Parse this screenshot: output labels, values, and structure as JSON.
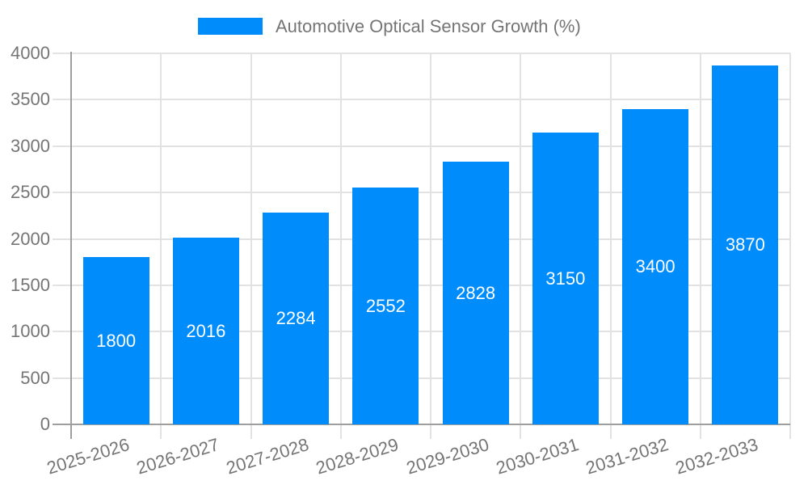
{
  "legend": {
    "label": "Automotive Optical Sensor Growth (%)"
  },
  "colors": {
    "bar": "#008DFB",
    "axis_text": "#757575",
    "bar_label_text": "#ffffff",
    "gridline": "#e2e2e2",
    "axis_line": "#9e9e9e",
    "background": "#ffffff"
  },
  "chart_data": {
    "type": "bar",
    "title": "Automotive Optical Sensor Growth (%)",
    "categories": [
      "2025-2026",
      "2026-2027",
      "2027-2028",
      "2028-2029",
      "2029-2030",
      "2030-2031",
      "2031-2032",
      "2032-2033"
    ],
    "values": [
      1800,
      2016,
      2284,
      2552,
      2828,
      3150,
      3400,
      3870
    ],
    "bar_value_labels": [
      "1800",
      "2016",
      "2284",
      "2552",
      "2828",
      "3150",
      "3400",
      "3870"
    ],
    "xlabel": "",
    "ylabel": "",
    "ylim": [
      0,
      4000
    ],
    "yticks": [
      0,
      500,
      1000,
      1500,
      2000,
      2500,
      3000,
      3500,
      4000
    ],
    "grid": true,
    "legend_position": "top",
    "x_label_rotation_deg": -17
  }
}
